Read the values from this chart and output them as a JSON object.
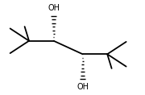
{
  "bg_color": "#ffffff",
  "atom_color": "#000000",
  "bond_color": "#000000",
  "bond_lw": 1.3,
  "fig_width": 1.8,
  "fig_height": 1.18,
  "dpi": 100,
  "OH3_label": "OH",
  "OH4_label": "OH",
  "font_size": 7.0
}
